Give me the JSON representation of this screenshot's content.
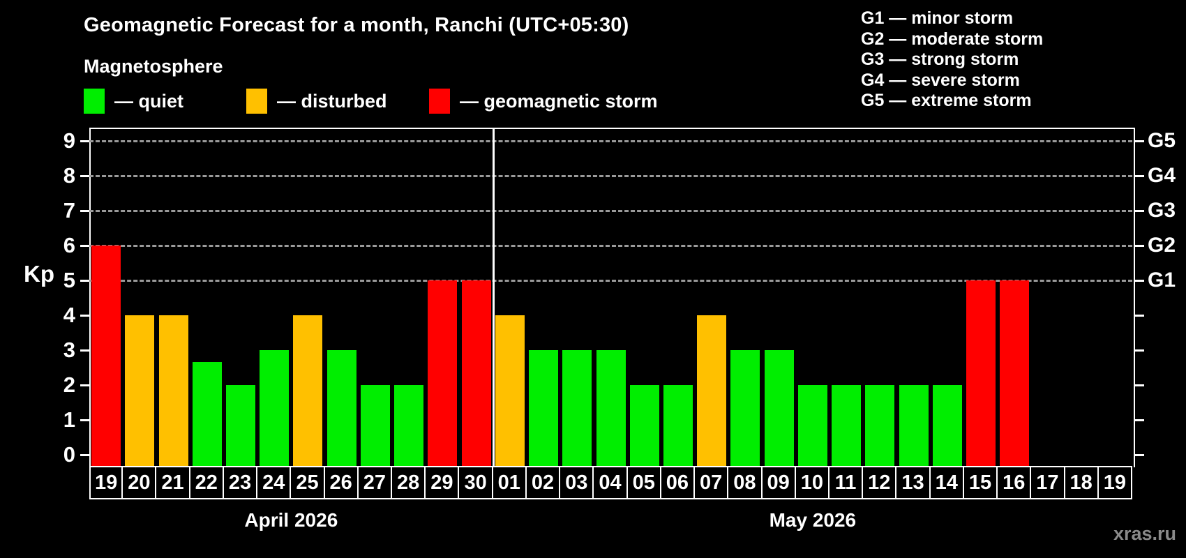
{
  "header": {
    "title": "Geomagnetic Forecast for a month, Ranchi (UTC+05:30)"
  },
  "legend": {
    "title": "Magnetosphere",
    "items": [
      {
        "key": "quiet",
        "label": "— quiet"
      },
      {
        "key": "disturbed",
        "label": "— disturbed"
      },
      {
        "key": "storm",
        "label": "— geomagnetic storm"
      }
    ]
  },
  "g_legend": {
    "items": [
      "G1 — minor storm",
      "G2 — moderate storm",
      "G3 — strong storm",
      "G4 — severe storm",
      "G5 — extreme storm"
    ]
  },
  "footer": {
    "watermark": "xras.ru"
  },
  "colors": {
    "quiet": "#00ee00",
    "disturbed": "#ffc000",
    "storm": "#ff0000",
    "axis": "#ffffff",
    "gridline": "#9a9a9a",
    "background": "#000000"
  },
  "chart_data": {
    "type": "bar",
    "title": "Geomagnetic Forecast for a month, Ranchi (UTC+05:30)",
    "xlabel": "",
    "ylabel": "Kp",
    "ylim": [
      0,
      9
    ],
    "yticks": [
      0,
      1,
      2,
      3,
      4,
      5,
      6,
      7,
      8,
      9
    ],
    "gridlines_at": [
      5,
      6,
      7,
      8,
      9
    ],
    "grid": "dashed horizontal at Kp 5-9 only",
    "legend_position": "top-left",
    "right_axis": {
      "ticks": [
        0,
        1,
        2,
        3,
        4,
        5,
        6,
        7,
        8,
        9
      ],
      "labels": [
        {
          "value": 5,
          "label": "G1"
        },
        {
          "value": 6,
          "label": "G2"
        },
        {
          "value": 7,
          "label": "G3"
        },
        {
          "value": 8,
          "label": "G4"
        },
        {
          "value": 9,
          "label": "G5"
        }
      ]
    },
    "months": [
      {
        "label": "April 2026",
        "days": [
          {
            "day": "19",
            "kp": 6,
            "status": "storm"
          },
          {
            "day": "20",
            "kp": 4,
            "status": "disturbed"
          },
          {
            "day": "21",
            "kp": 4,
            "status": "disturbed"
          },
          {
            "day": "22",
            "kp": 2.67,
            "status": "quiet"
          },
          {
            "day": "23",
            "kp": 2,
            "status": "quiet"
          },
          {
            "day": "24",
            "kp": 3,
            "status": "quiet"
          },
          {
            "day": "25",
            "kp": 4,
            "status": "disturbed"
          },
          {
            "day": "26",
            "kp": 3,
            "status": "quiet"
          },
          {
            "day": "27",
            "kp": 2,
            "status": "quiet"
          },
          {
            "day": "28",
            "kp": 2,
            "status": "quiet"
          },
          {
            "day": "29",
            "kp": 5,
            "status": "storm"
          },
          {
            "day": "30",
            "kp": 5,
            "status": "storm"
          }
        ]
      },
      {
        "label": "May 2026",
        "days": [
          {
            "day": "01",
            "kp": 4,
            "status": "disturbed"
          },
          {
            "day": "02",
            "kp": 3,
            "status": "quiet"
          },
          {
            "day": "03",
            "kp": 3,
            "status": "quiet"
          },
          {
            "day": "04",
            "kp": 3,
            "status": "quiet"
          },
          {
            "day": "05",
            "kp": 2,
            "status": "quiet"
          },
          {
            "day": "06",
            "kp": 2,
            "status": "quiet"
          },
          {
            "day": "07",
            "kp": 4,
            "status": "disturbed"
          },
          {
            "day": "08",
            "kp": 3,
            "status": "quiet"
          },
          {
            "day": "09",
            "kp": 3,
            "status": "quiet"
          },
          {
            "day": "10",
            "kp": 2,
            "status": "quiet"
          },
          {
            "day": "11",
            "kp": 2,
            "status": "quiet"
          },
          {
            "day": "12",
            "kp": 2,
            "status": "quiet"
          },
          {
            "day": "13",
            "kp": 2,
            "status": "quiet"
          },
          {
            "day": "14",
            "kp": 2,
            "status": "quiet"
          },
          {
            "day": "15",
            "kp": 5,
            "status": "storm"
          },
          {
            "day": "16",
            "kp": 5,
            "status": "storm"
          },
          {
            "day": "17",
            "kp": null,
            "status": null
          },
          {
            "day": "18",
            "kp": null,
            "status": null
          },
          {
            "day": "19",
            "kp": null,
            "status": null
          }
        ]
      }
    ]
  }
}
